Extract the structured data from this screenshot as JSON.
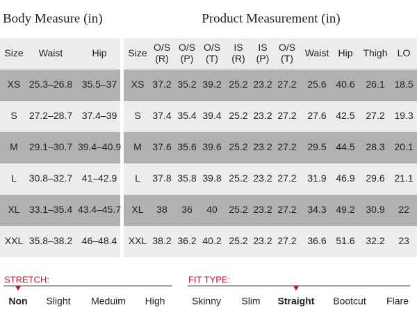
{
  "body_table": {
    "title": "Body Measure (in)",
    "headers": [
      "Size",
      "Waist",
      "Hip"
    ],
    "rows": [
      [
        "XS",
        "25.3–26.8",
        "35.5–37"
      ],
      [
        "S",
        "27.2–28.7",
        "37.4–39"
      ],
      [
        "M",
        "29.1–30.7",
        "39.4–40.9"
      ],
      [
        "L",
        "30.8–32.7",
        "41–42.9"
      ],
      [
        "XL",
        "33.1–35.4",
        "43.4–45.7"
      ],
      [
        "XXL",
        "35.8–38.2",
        "46–48.4"
      ]
    ]
  },
  "product_table": {
    "title": "Product Measurement (in)",
    "headers": [
      [
        "Size"
      ],
      [
        "O/S",
        "(R)"
      ],
      [
        "O/S",
        "(P)"
      ],
      [
        "O/S",
        "(T)"
      ],
      [
        "IS",
        "(R)"
      ],
      [
        "IS",
        "(P)"
      ],
      [
        "O/S",
        "(T)"
      ],
      [
        "Waist"
      ],
      [
        "Hip"
      ],
      [
        "Thigh"
      ],
      [
        "LO"
      ]
    ],
    "rows": [
      [
        "XS",
        37.2,
        35.2,
        39.2,
        25.2,
        23.2,
        27.2,
        25.6,
        40.6,
        26.1,
        18.5
      ],
      [
        "S",
        37.4,
        35.4,
        39.4,
        25.2,
        23.2,
        27.2,
        27.6,
        42.5,
        27.2,
        19.3
      ],
      [
        "M",
        37.6,
        35.6,
        39.6,
        25.2,
        23.2,
        27.2,
        29.5,
        44.5,
        28.3,
        20.1
      ],
      [
        "L",
        37.8,
        35.8,
        39.8,
        25.2,
        23.2,
        27.2,
        31.9,
        46.9,
        29.6,
        21.1
      ],
      [
        "XL",
        38,
        36,
        40,
        25.2,
        23.2,
        27.2,
        34.3,
        49.2,
        30.9,
        22
      ],
      [
        "XXL",
        38.2,
        36.2,
        40.2,
        25.2,
        23.2,
        27.2,
        36.6,
        51.6,
        32.2,
        23
      ]
    ]
  },
  "stretch": {
    "label": "STRETCH:",
    "options": [
      "Non",
      "Slight",
      "Meduim",
      "High"
    ],
    "selected": 0
  },
  "fit_type": {
    "label": "FIT TYPE:",
    "options": [
      "Skinny",
      "Slim",
      "Straight",
      "Bootcut",
      "Flare"
    ],
    "selected": 2
  }
}
